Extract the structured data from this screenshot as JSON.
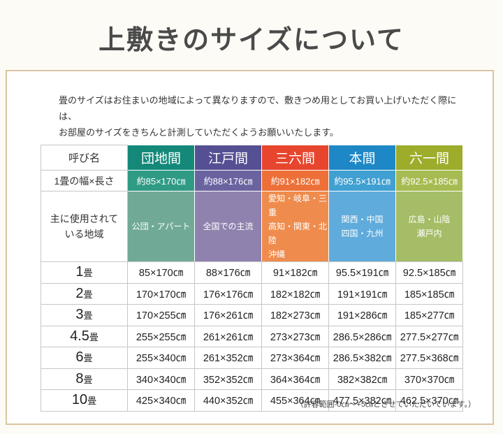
{
  "page": {
    "title": "上敷きのサイズについて",
    "intro_text": "畳のサイズはお住まいの地域によって異なりますので、敷きつめ用としてお買い上げいただく際には、\nお部屋のサイズをきちんと計測していただくようお願いいたします。",
    "footnote": "（許容範囲-0㎝～+5㎝とさせていただいています。）"
  },
  "table": {
    "corner_header": "呼び名",
    "size_row_label": "1畳の幅×長さ",
    "region_row_label": "主に使用されて\nいる地域",
    "unit": "㎝",
    "columns": [
      {
        "name": "団地間",
        "size": "約85×170㎝",
        "regions": "公団・アパート",
        "colors": {
          "header": "#14897a",
          "size": "#309b85",
          "region": "#70aa96"
        },
        "regions_align": "center"
      },
      {
        "name": "江戸間",
        "size": "約88×176㎝",
        "regions": "全国での主流",
        "colors": {
          "header": "#554f93",
          "size": "#6a63a0",
          "region": "#9082ae"
        },
        "regions_align": "center"
      },
      {
        "name": "三六間",
        "size": "約91×182㎝",
        "regions": "愛知・岐阜・三重\n高知・関東・北陸\n沖縄",
        "colors": {
          "header": "#e7452e",
          "size": "#ec7038",
          "region": "#ef8c4d"
        },
        "regions_align": "left"
      },
      {
        "name": "本間",
        "size": "約95.5×191㎝",
        "regions": "関西・中国\n四国・九州",
        "colors": {
          "header": "#1e87c6",
          "size": "#40a0d2",
          "region": "#5fabdc"
        },
        "regions_align": "center"
      },
      {
        "name": "六一間",
        "size": "約92.5×185㎝",
        "regions": "広島・山陰\n瀬戸内",
        "colors": {
          "header": "#9dac2b",
          "size": "#a6bb51",
          "region": "#a5bd66"
        },
        "regions_align": "center"
      }
    ],
    "rows": [
      {
        "label_num": "1",
        "label_suffix": "畳",
        "values": [
          "85×170㎝",
          "88×176㎝",
          "91×182㎝",
          "95.5×191㎝",
          "92.5×185㎝"
        ]
      },
      {
        "label_num": "2",
        "label_suffix": "畳",
        "values": [
          "170×170㎝",
          "176×176㎝",
          "182×182㎝",
          "191×191㎝",
          "185×185㎝"
        ]
      },
      {
        "label_num": "3",
        "label_suffix": "畳",
        "values": [
          "170×255㎝",
          "176×261㎝",
          "182×273㎝",
          "191×286㎝",
          "185×277㎝"
        ]
      },
      {
        "label_num": "4.5",
        "label_suffix": "畳",
        "values": [
          "255×255㎝",
          "261×261㎝",
          "273×273㎝",
          "286.5×286㎝",
          "277.5×277㎝"
        ]
      },
      {
        "label_num": "6",
        "label_suffix": "畳",
        "values": [
          "255×340㎝",
          "261×352㎝",
          "273×364㎝",
          "286.5×382㎝",
          "277.5×368㎝"
        ]
      },
      {
        "label_num": "8",
        "label_suffix": "畳",
        "values": [
          "340×340㎝",
          "352×352㎝",
          "364×364㎝",
          "382×382㎝",
          "370×370㎝"
        ]
      },
      {
        "label_num": "10",
        "label_suffix": "畳",
        "values": [
          "425×340㎝",
          "440×352㎝",
          "455×364㎝",
          "477.5×382㎝",
          "462.5×370㎝"
        ]
      }
    ],
    "layout": {
      "label_col_width": 124,
      "data_col_width": 96,
      "header_row_height": 36,
      "size_row_height": 30,
      "region_row_height": 68,
      "data_row_height": 30.5
    }
  }
}
